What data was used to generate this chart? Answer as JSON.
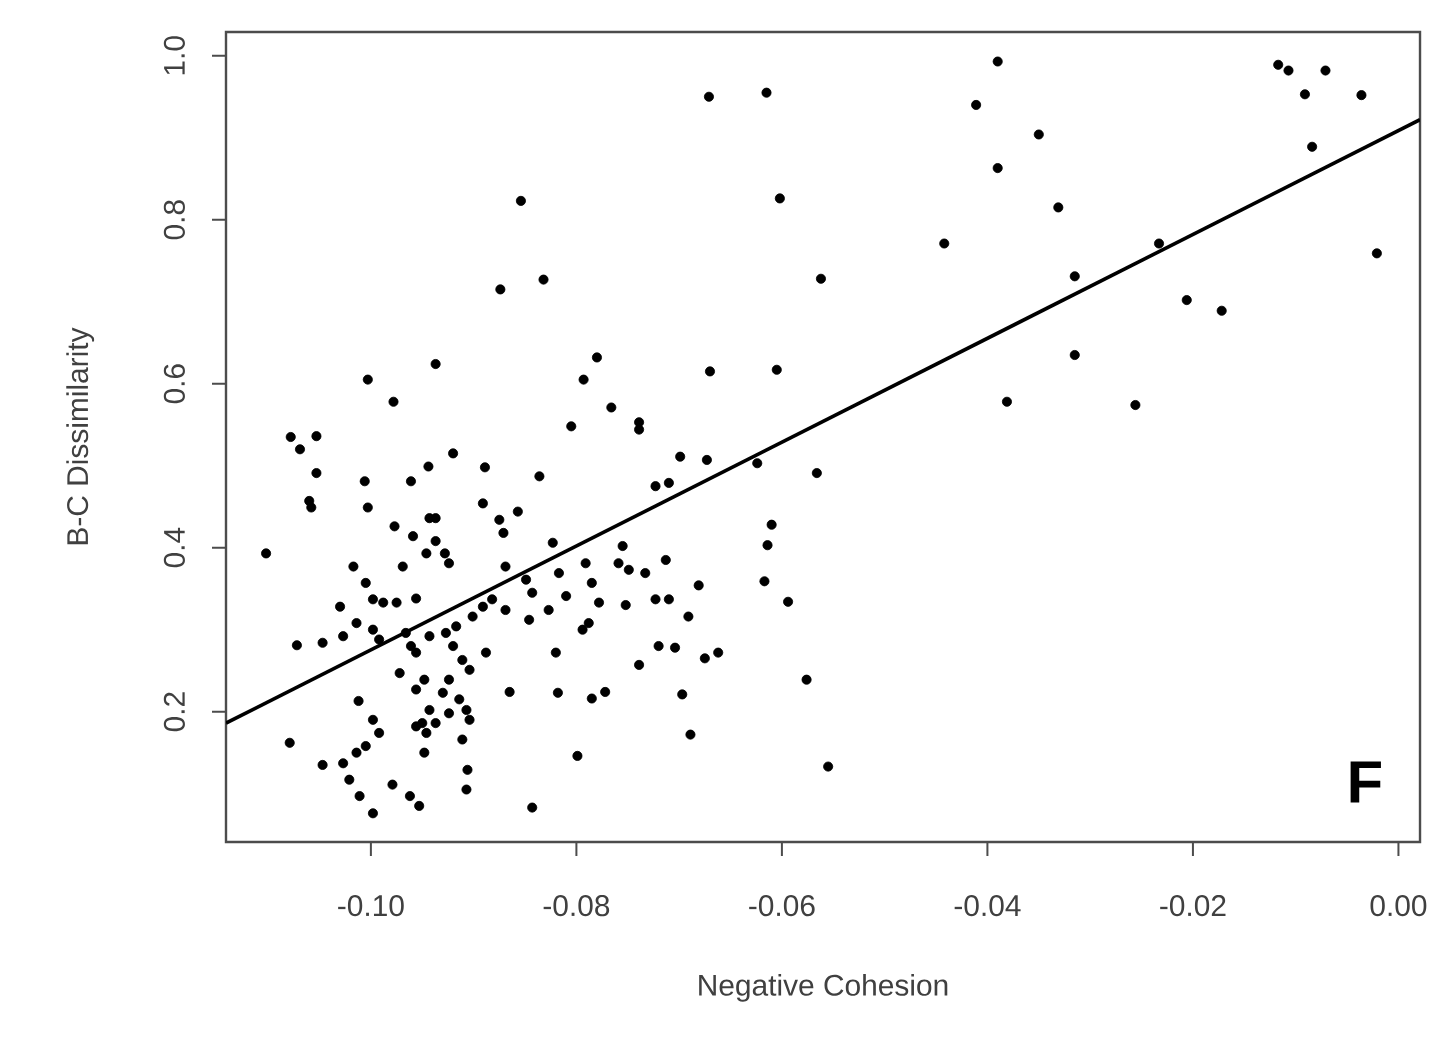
{
  "chart_data": {
    "type": "scatter",
    "xlabel": "Negative Cohesion",
    "ylabel": "B-C Dissimilarity",
    "annotations": [
      "F"
    ],
    "xlim": [
      -0.1141,
      0.0021
    ],
    "ylim": [
      0.041,
      1.029
    ],
    "xticks": [
      {
        "value": -0.1,
        "label": "-0.10"
      },
      {
        "value": -0.08,
        "label": "-0.08"
      },
      {
        "value": -0.06,
        "label": "-0.06"
      },
      {
        "value": -0.04,
        "label": "-0.04"
      },
      {
        "value": -0.02,
        "label": "-0.02"
      },
      {
        "value": 0,
        "label": "0.00"
      }
    ],
    "yticks": [
      0.2,
      0.4,
      0.6,
      0.8,
      {
        "value": 1.0,
        "label": "1.0"
      }
    ],
    "series": [
      {
        "color": "#000000",
        "marker": "circle",
        "x": [
          -0.0671,
          -0.0854,
          -0.0874,
          -0.0832,
          -0.1003,
          -0.0978,
          -0.0937,
          -0.078,
          -0.0793,
          -0.0766,
          -0.0805,
          -0.0739,
          -0.0739,
          -0.067,
          -0.1078,
          -0.1053,
          -0.0615,
          -0.039,
          -0.0411,
          -0.035,
          -0.039,
          -0.0602,
          -0.0331,
          -0.0442,
          -0.0562,
          -0.0315,
          -0.0233,
          -0.0206,
          -0.0172,
          -0.0315,
          -0.0381,
          -0.0256,
          -0.0605,
          -0.0117,
          -0.0107,
          -0.0071,
          -0.0091,
          -0.0036,
          -0.0084,
          -0.0021,
          -0.0566,
          -0.061,
          -0.0614,
          -0.0617,
          -0.0594,
          -0.0576,
          -0.0555,
          -0.1069,
          -0.1053,
          -0.106,
          -0.1058,
          -0.1102,
          -0.1006,
          -0.1003,
          -0.0961,
          -0.0944,
          -0.092,
          -0.0889,
          -0.0836,
          -0.0891,
          -0.0875,
          -0.0857,
          -0.0871,
          -0.0943,
          -0.0937,
          -0.0977,
          -0.0959,
          -0.0937,
          -0.0928,
          -0.0924,
          -0.0946,
          -0.0969,
          -0.1017,
          -0.1005,
          -0.103,
          -0.0998,
          -0.0988,
          -0.0975,
          -0.0956,
          -0.1014,
          -0.0998,
          -0.1047,
          -0.1072,
          -0.1027,
          -0.0992,
          -0.0966,
          -0.0961,
          -0.0956,
          -0.0943,
          -0.0927,
          -0.092,
          -0.0911,
          -0.0904,
          -0.0888,
          -0.0917,
          -0.0901,
          -0.0891,
          -0.0882,
          -0.0869,
          -0.0869,
          -0.0849,
          -0.0843,
          -0.0846,
          -0.0827,
          -0.0823,
          -0.0817,
          -0.081,
          -0.0791,
          -0.0785,
          -0.0778,
          -0.0794,
          -0.0788,
          -0.0755,
          -0.0759,
          -0.0749,
          -0.0733,
          -0.0713,
          -0.0752,
          -0.0723,
          -0.071,
          -0.0681,
          -0.0691,
          -0.0723,
          -0.071,
          -0.0699,
          -0.0673,
          -0.0624,
          -0.082,
          -0.0739,
          -0.072,
          -0.0704,
          -0.0675,
          -0.0662,
          -0.0865,
          -0.0818,
          -0.0785,
          -0.0772,
          -0.0697,
          -0.0689,
          -0.0799,
          -0.0843,
          -0.0972,
          -0.0956,
          -0.0948,
          -0.093,
          -0.0924,
          -0.0943,
          -0.095,
          -0.0946,
          -0.0956,
          -0.0937,
          -0.0924,
          -0.0914,
          -0.0907,
          -0.0904,
          -0.0911,
          -0.0948,
          -0.1012,
          -0.0998,
          -0.0992,
          -0.1005,
          -0.1014,
          -0.1027,
          -0.1047,
          -0.1079,
          -0.1021,
          -0.1011,
          -0.0998,
          -0.0979,
          -0.0962,
          -0.0953,
          -0.0906,
          -0.0907
        ],
        "values": [
          0.95,
          0.823,
          0.715,
          0.727,
          0.605,
          0.578,
          0.624,
          0.632,
          0.605,
          0.571,
          0.548,
          0.553,
          0.544,
          0.615,
          0.535,
          0.536,
          0.955,
          0.993,
          0.94,
          0.904,
          0.863,
          0.826,
          0.815,
          0.771,
          0.728,
          0.731,
          0.771,
          0.702,
          0.689,
          0.635,
          0.578,
          0.574,
          0.617,
          0.989,
          0.982,
          0.982,
          0.953,
          0.952,
          0.889,
          0.759,
          0.491,
          0.428,
          0.403,
          0.359,
          0.334,
          0.239,
          0.133,
          0.52,
          0.491,
          0.457,
          0.449,
          0.393,
          0.481,
          0.449,
          0.481,
          0.499,
          0.515,
          0.498,
          0.487,
          0.454,
          0.434,
          0.444,
          0.418,
          0.436,
          0.436,
          0.426,
          0.414,
          0.408,
          0.393,
          0.381,
          0.393,
          0.377,
          0.377,
          0.357,
          0.328,
          0.337,
          0.333,
          0.333,
          0.338,
          0.308,
          0.3,
          0.284,
          0.281,
          0.292,
          0.288,
          0.296,
          0.28,
          0.272,
          0.292,
          0.296,
          0.28,
          0.263,
          0.251,
          0.272,
          0.304,
          0.316,
          0.328,
          0.337,
          0.324,
          0.377,
          0.361,
          0.345,
          0.312,
          0.324,
          0.406,
          0.369,
          0.341,
          0.381,
          0.357,
          0.333,
          0.3,
          0.308,
          0.402,
          0.381,
          0.373,
          0.369,
          0.385,
          0.33,
          0.337,
          0.337,
          0.354,
          0.316,
          0.475,
          0.479,
          0.511,
          0.507,
          0.503,
          0.272,
          0.257,
          0.28,
          0.278,
          0.265,
          0.272,
          0.224,
          0.223,
          0.216,
          0.224,
          0.221,
          0.172,
          0.146,
          0.083,
          0.247,
          0.227,
          0.239,
          0.223,
          0.239,
          0.202,
          0.186,
          0.174,
          0.182,
          0.186,
          0.198,
          0.215,
          0.202,
          0.19,
          0.166,
          0.15,
          0.213,
          0.19,
          0.174,
          0.158,
          0.15,
          0.137,
          0.135,
          0.162,
          0.117,
          0.097,
          0.076,
          0.111,
          0.097,
          0.085,
          0.129,
          0.105
        ]
      },
      {
        "type": "line",
        "color": "#000000",
        "marker": "none",
        "x": [
          -0.1141,
          0.0021
        ],
        "values": [
          0.186,
          0.922
        ]
      }
    ]
  }
}
